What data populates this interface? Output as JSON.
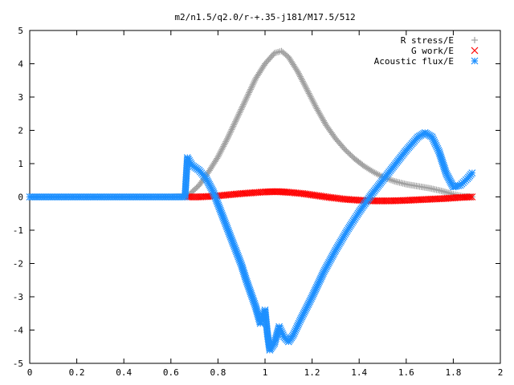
{
  "chart_data": {
    "type": "scatter",
    "title": "m2/n1.5/q2.0/r-+.35-j181/M17.5/512",
    "xlabel": "",
    "ylabel": "",
    "xlim": [
      0,
      2
    ],
    "ylim": [
      -5,
      5
    ],
    "x_ticks": [
      "0",
      "0.2",
      "0.4",
      "0.6",
      "0.8",
      "1",
      "1.2",
      "1.4",
      "1.6",
      "1.8",
      "2"
    ],
    "y_ticks": [
      "5",
      "4",
      "3",
      "2",
      "1",
      "0",
      "-1",
      "-2",
      "-3",
      "-4",
      "-5"
    ],
    "grid": false,
    "legend_position": "top-right",
    "series": [
      {
        "name": "R stress/E",
        "marker": "plus",
        "color": "#a0a0a0",
        "points": [
          [
            0.0,
            0
          ],
          [
            0.1,
            0
          ],
          [
            0.2,
            0
          ],
          [
            0.3,
            0
          ],
          [
            0.4,
            0
          ],
          [
            0.5,
            0
          ],
          [
            0.6,
            0
          ],
          [
            0.67,
            0.02
          ],
          [
            0.72,
            0.35
          ],
          [
            0.76,
            0.75
          ],
          [
            0.8,
            1.2
          ],
          [
            0.84,
            1.75
          ],
          [
            0.88,
            2.35
          ],
          [
            0.92,
            2.95
          ],
          [
            0.96,
            3.55
          ],
          [
            1.0,
            4.0
          ],
          [
            1.04,
            4.32
          ],
          [
            1.07,
            4.38
          ],
          [
            1.1,
            4.2
          ],
          [
            1.14,
            3.75
          ],
          [
            1.18,
            3.2
          ],
          [
            1.22,
            2.65
          ],
          [
            1.26,
            2.15
          ],
          [
            1.3,
            1.75
          ],
          [
            1.34,
            1.42
          ],
          [
            1.38,
            1.15
          ],
          [
            1.42,
            0.93
          ],
          [
            1.46,
            0.75
          ],
          [
            1.5,
            0.6
          ],
          [
            1.55,
            0.47
          ],
          [
            1.6,
            0.38
          ],
          [
            1.65,
            0.32
          ],
          [
            1.7,
            0.26
          ],
          [
            1.75,
            0.18
          ],
          [
            1.8,
            0.08
          ],
          [
            1.84,
            0.02
          ],
          [
            1.88,
            0.0
          ]
        ]
      },
      {
        "name": "G work/E",
        "marker": "cross",
        "color": "#ff0000",
        "points": [
          [
            0.67,
            0.0
          ],
          [
            0.72,
            0.0
          ],
          [
            0.78,
            0.02
          ],
          [
            0.84,
            0.06
          ],
          [
            0.9,
            0.1
          ],
          [
            0.96,
            0.13
          ],
          [
            1.0,
            0.15
          ],
          [
            1.05,
            0.16
          ],
          [
            1.1,
            0.14
          ],
          [
            1.16,
            0.1
          ],
          [
            1.22,
            0.04
          ],
          [
            1.28,
            -0.02
          ],
          [
            1.34,
            -0.07
          ],
          [
            1.4,
            -0.1
          ],
          [
            1.46,
            -0.12
          ],
          [
            1.52,
            -0.12
          ],
          [
            1.58,
            -0.11
          ],
          [
            1.64,
            -0.09
          ],
          [
            1.7,
            -0.07
          ],
          [
            1.76,
            -0.05
          ],
          [
            1.82,
            -0.02
          ],
          [
            1.88,
            0.0
          ]
        ]
      },
      {
        "name": "Acoustic flux/E",
        "marker": "star",
        "color": "#1e90ff",
        "points": [
          [
            0.0,
            0
          ],
          [
            0.1,
            0
          ],
          [
            0.2,
            0
          ],
          [
            0.3,
            0
          ],
          [
            0.4,
            0
          ],
          [
            0.5,
            0
          ],
          [
            0.6,
            0
          ],
          [
            0.66,
            0
          ],
          [
            0.67,
            1.18
          ],
          [
            0.69,
            0.95
          ],
          [
            0.72,
            0.8
          ],
          [
            0.75,
            0.55
          ],
          [
            0.78,
            0.15
          ],
          [
            0.81,
            -0.4
          ],
          [
            0.84,
            -0.95
          ],
          [
            0.87,
            -1.5
          ],
          [
            0.9,
            -2.05
          ],
          [
            0.92,
            -2.5
          ],
          [
            0.94,
            -2.9
          ],
          [
            0.96,
            -3.3
          ],
          [
            0.98,
            -3.8
          ],
          [
            1.0,
            -3.4
          ],
          [
            1.01,
            -4.1
          ],
          [
            1.02,
            -4.6
          ],
          [
            1.04,
            -4.4
          ],
          [
            1.06,
            -3.9
          ],
          [
            1.08,
            -4.2
          ],
          [
            1.1,
            -4.35
          ],
          [
            1.12,
            -4.15
          ],
          [
            1.15,
            -3.7
          ],
          [
            1.2,
            -3.0
          ],
          [
            1.25,
            -2.25
          ],
          [
            1.3,
            -1.6
          ],
          [
            1.35,
            -1.0
          ],
          [
            1.4,
            -0.45
          ],
          [
            1.45,
            0.05
          ],
          [
            1.5,
            0.5
          ],
          [
            1.55,
            0.95
          ],
          [
            1.6,
            1.4
          ],
          [
            1.65,
            1.8
          ],
          [
            1.68,
            1.93
          ],
          [
            1.71,
            1.8
          ],
          [
            1.74,
            1.35
          ],
          [
            1.77,
            0.7
          ],
          [
            1.8,
            0.3
          ],
          [
            1.83,
            0.35
          ],
          [
            1.86,
            0.55
          ],
          [
            1.88,
            0.72
          ]
        ]
      }
    ]
  }
}
